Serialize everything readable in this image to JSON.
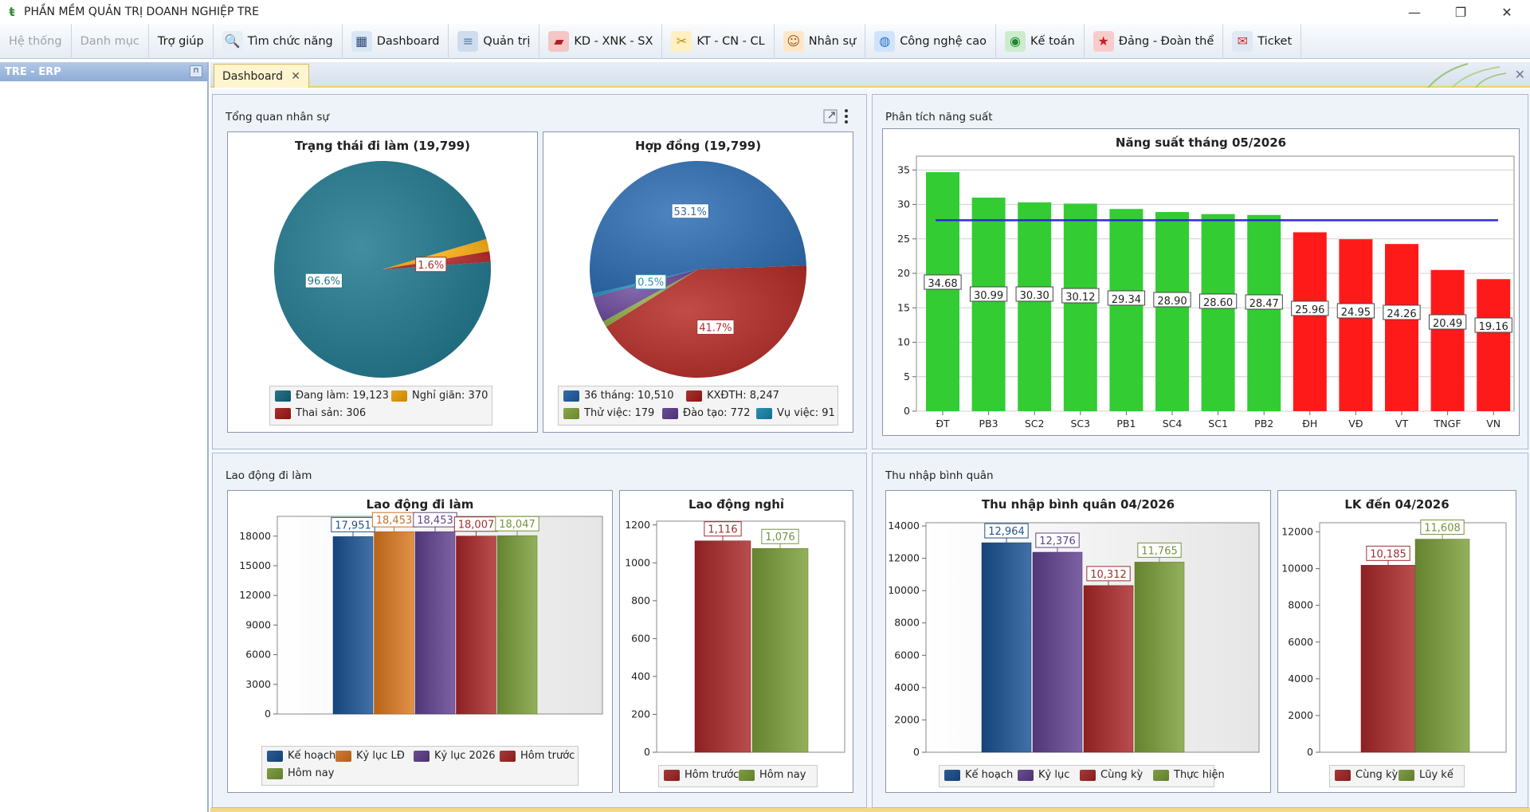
{
  "window": {
    "title": "PHẦN MỀM QUẢN TRỊ DOANH NGHIỆP TRE",
    "app_icon": "tre-logo-icon",
    "minimize": "—",
    "maximize": "❐",
    "close": "✕"
  },
  "menu": [
    {
      "label": "Hệ thống",
      "disabled": true,
      "icon": ""
    },
    {
      "label": "Danh mục",
      "disabled": true,
      "icon": ""
    },
    {
      "label": "Trợ giúp",
      "disabled": false,
      "icon": ""
    },
    {
      "label": "Tìm chức năng",
      "disabled": false,
      "icon": "search-icon"
    },
    {
      "label": "Dashboard",
      "disabled": false,
      "icon": "dashboard-icon"
    },
    {
      "label": "Quản trị",
      "disabled": false,
      "icon": "database-icon"
    },
    {
      "label": "KD - XNK - SX",
      "disabled": false,
      "icon": "book-icon"
    },
    {
      "label": "KT - CN - CL",
      "disabled": false,
      "icon": "tools-icon"
    },
    {
      "label": "Nhân sự",
      "disabled": false,
      "icon": "users-icon"
    },
    {
      "label": "Công nghệ cao",
      "disabled": false,
      "icon": "globe-icon"
    },
    {
      "label": "Kế toán",
      "disabled": false,
      "icon": "accounting-icon"
    },
    {
      "label": "Đảng - Đoàn thể",
      "disabled": false,
      "icon": "party-icon"
    },
    {
      "label": "Ticket",
      "disabled": false,
      "icon": "ticket-icon"
    }
  ],
  "sidebar": {
    "title": "TRE - ERP",
    "pin": "⊓"
  },
  "tabs": [
    {
      "label": "Dashboard",
      "close": "✕"
    }
  ],
  "tabstrip_close": "✕",
  "panels": {
    "nhansu": "Tổng quan nhân sự",
    "nangsuat": "Phân tích năng suất",
    "laodong": "Lao động đi làm",
    "thunhap": "Thu nhập bình quân"
  },
  "chart_data": [
    {
      "id": "trang-thai",
      "type": "pie",
      "title": "Trạng thái đi làm (19,799)",
      "slices": [
        {
          "name": "Đang làm",
          "value": 19123,
          "label": "96.6%",
          "color": "#2a7488"
        },
        {
          "name": "Nghỉ giãn",
          "value": 370,
          "label": "",
          "color": "#e8a51c"
        },
        {
          "name": "Thai sản",
          "value": 306,
          "label": "1.6%",
          "color": "#a8302e"
        }
      ],
      "legend": [
        {
          "text": "Đang làm: 19,123",
          "color": "#2a7488"
        },
        {
          "text": "Nghỉ giãn: 370",
          "color": "#e8a51c"
        },
        {
          "text": "Thai sản: 306",
          "color": "#a8302e"
        }
      ]
    },
    {
      "id": "hop-dong",
      "type": "pie",
      "title": "Hợp đồng (19,799)",
      "slices": [
        {
          "name": "36 tháng",
          "value": 10510,
          "label": "53.1%",
          "color": "#356ba6"
        },
        {
          "name": "KXĐTH",
          "value": 8247,
          "label": "41.7%",
          "color": "#a8332f"
        },
        {
          "name": "Thử việc",
          "value": 179,
          "label": "",
          "color": "#8aa54a"
        },
        {
          "name": "Đào tạo",
          "value": 772,
          "label": "",
          "color": "#6a4d92"
        },
        {
          "name": "Vụ việc",
          "value": 91,
          "label": "0.5%",
          "color": "#2c8fb0"
        }
      ],
      "legend": [
        {
          "text": "36 tháng: 10,510",
          "color": "#356ba6"
        },
        {
          "text": "KXĐTH: 8,247",
          "color": "#a8332f"
        },
        {
          "text": "Thử việc: 179",
          "color": "#8aa54a"
        },
        {
          "text": "Đào tạo: 772",
          "color": "#6a4d92"
        },
        {
          "text": "Vụ việc: 91",
          "color": "#2c8fb0"
        }
      ]
    },
    {
      "id": "nang-suat",
      "type": "bar",
      "title": "Năng suất tháng 05/2026",
      "categories": [
        "ĐT",
        "PB3",
        "SC2",
        "SC3",
        "PB1",
        "SC4",
        "SC1",
        "PB2",
        "ĐH",
        "VĐ",
        "VT",
        "TNGF",
        "VN"
      ],
      "values": [
        34.68,
        30.99,
        30.3,
        30.12,
        29.34,
        28.9,
        28.6,
        28.47,
        25.96,
        24.95,
        24.26,
        20.49,
        19.16
      ],
      "value_labels": [
        "34.68",
        "30.99",
        "30.30",
        "30.12",
        "29.34",
        "28.90",
        "28.60",
        "28.47",
        "25.96",
        "24.95",
        "24.26",
        "20.49",
        "19.16"
      ],
      "colors": [
        "#33cc33",
        "#33cc33",
        "#33cc33",
        "#33cc33",
        "#33cc33",
        "#33cc33",
        "#33cc33",
        "#33cc33",
        "#ff1a1a",
        "#ff1a1a",
        "#ff1a1a",
        "#ff1a1a",
        "#ff1a1a"
      ],
      "target": 27.7,
      "target_color": "#2b2bd6",
      "ylim": [
        0,
        37
      ],
      "yticks": [
        "0",
        "5",
        "10",
        "15",
        "20",
        "25",
        "30",
        "35"
      ],
      "grid": true
    },
    {
      "id": "lao-dong-di-lam",
      "type": "bar",
      "title": "Lao động đi làm",
      "categories": [
        "Kế hoạch",
        "Kỷ lục LĐ",
        "Kỷ lục 2026",
        "Hôm trước",
        "Hôm nay"
      ],
      "values": [
        17951,
        18453,
        18453,
        18007,
        18047
      ],
      "value_labels": [
        "17,951",
        "18,453",
        "18,453",
        "18,007",
        "18,047"
      ],
      "colors": [
        "#2e5d94",
        "#d07d34",
        "#6a4f90",
        "#a6393a",
        "#7f9d48"
      ],
      "ylim": [
        0,
        20000
      ],
      "yticks": [
        "0",
        "3000",
        "6000",
        "9000",
        "12000",
        "15000",
        "18000"
      ],
      "legend": [
        {
          "text": "Kế hoạch",
          "color": "#2e5d94"
        },
        {
          "text": "Kỷ lục LĐ",
          "color": "#d07d34"
        },
        {
          "text": "Kỷ lục 2026",
          "color": "#6a4f90"
        },
        {
          "text": "Hôm trước",
          "color": "#a6393a"
        },
        {
          "text": "Hôm nay",
          "color": "#7f9d48"
        }
      ]
    },
    {
      "id": "lao-dong-nghi",
      "type": "bar",
      "title": "Lao động nghỉ",
      "categories": [
        "Hôm trước",
        "Hôm nay"
      ],
      "values": [
        1116,
        1076
      ],
      "value_labels": [
        "1,116",
        "1,076"
      ],
      "colors": [
        "#a6393a",
        "#7f9d48"
      ],
      "ylim": [
        0,
        1220
      ],
      "yticks": [
        "0",
        "200",
        "400",
        "600",
        "800",
        "1000",
        "1200"
      ],
      "legend": [
        {
          "text": "Hôm trước",
          "color": "#a6393a"
        },
        {
          "text": "Hôm nay",
          "color": "#7f9d48"
        }
      ]
    },
    {
      "id": "thu-nhap",
      "type": "bar",
      "title": "Thu nhập bình quân 04/2026",
      "categories": [
        "Kế hoạch",
        "Kỷ lục",
        "Cùng kỳ",
        "Thực hiện"
      ],
      "values": [
        12964,
        12376,
        10312,
        11765
      ],
      "value_labels": [
        "12,964",
        "12,376",
        "10,312",
        "11,765"
      ],
      "colors": [
        "#2e5d94",
        "#6a4f90",
        "#a6393a",
        "#7f9d48"
      ],
      "ylim": [
        0,
        14200
      ],
      "yticks": [
        "0",
        "2000",
        "4000",
        "6000",
        "8000",
        "10000",
        "12000",
        "14000"
      ],
      "legend": [
        {
          "text": "Kế hoạch",
          "color": "#2e5d94"
        },
        {
          "text": "Kỷ lục",
          "color": "#6a4f90"
        },
        {
          "text": "Cùng kỳ",
          "color": "#a6393a"
        },
        {
          "text": "Thực hiện",
          "color": "#7f9d48"
        }
      ]
    },
    {
      "id": "lk",
      "type": "bar",
      "title": "LK đến 04/2026",
      "categories": [
        "Cùng kỳ",
        "Lũy kế"
      ],
      "values": [
        10185,
        11608
      ],
      "value_labels": [
        "10,185",
        "11,608"
      ],
      "colors": [
        "#a6393a",
        "#7f9d48"
      ],
      "ylim": [
        0,
        12500
      ],
      "yticks": [
        "0",
        "2000",
        "4000",
        "6000",
        "8000",
        "10000",
        "12000"
      ],
      "legend": [
        {
          "text": "Cùng kỳ",
          "color": "#a6393a"
        },
        {
          "text": "Lũy kế",
          "color": "#7f9d48"
        }
      ]
    }
  ]
}
